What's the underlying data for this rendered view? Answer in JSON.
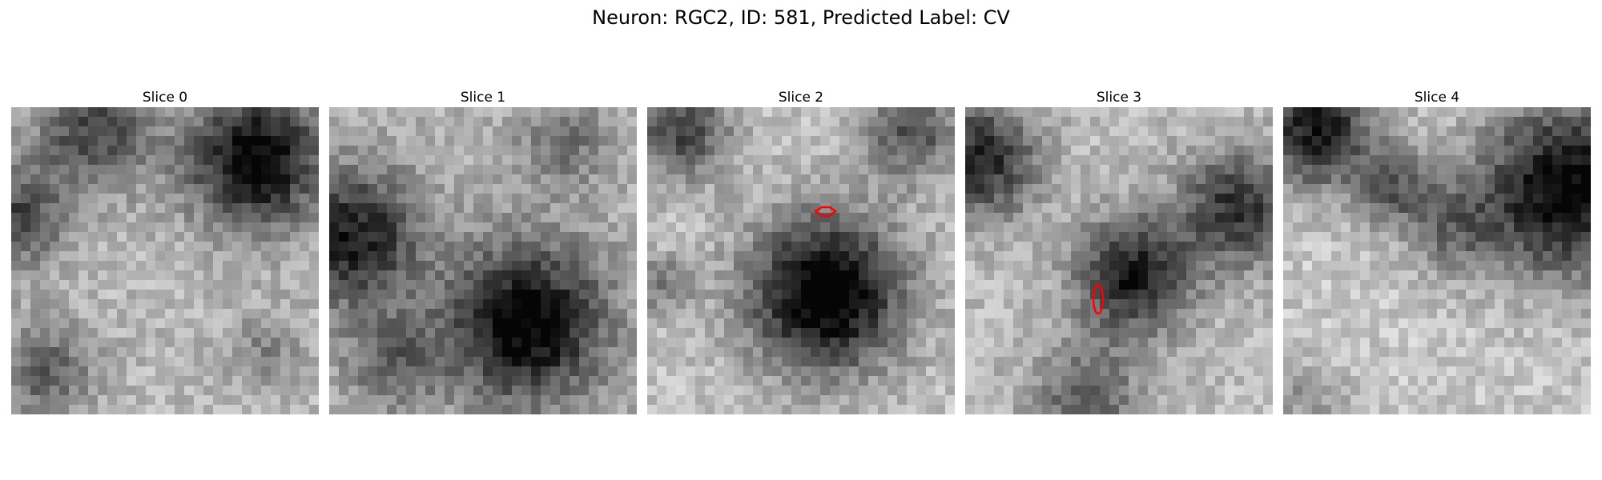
{
  "figure": {
    "title": "Neuron: RGC2, ID: 581, Predicted Label: CV"
  },
  "panels": [
    {
      "title": "Slice 0"
    },
    {
      "title": "Slice 1"
    },
    {
      "title": "Slice 2"
    },
    {
      "title": "Slice 3"
    },
    {
      "title": "Slice 4"
    }
  ],
  "colormap": "gray",
  "contour_color": "#ff0000"
}
